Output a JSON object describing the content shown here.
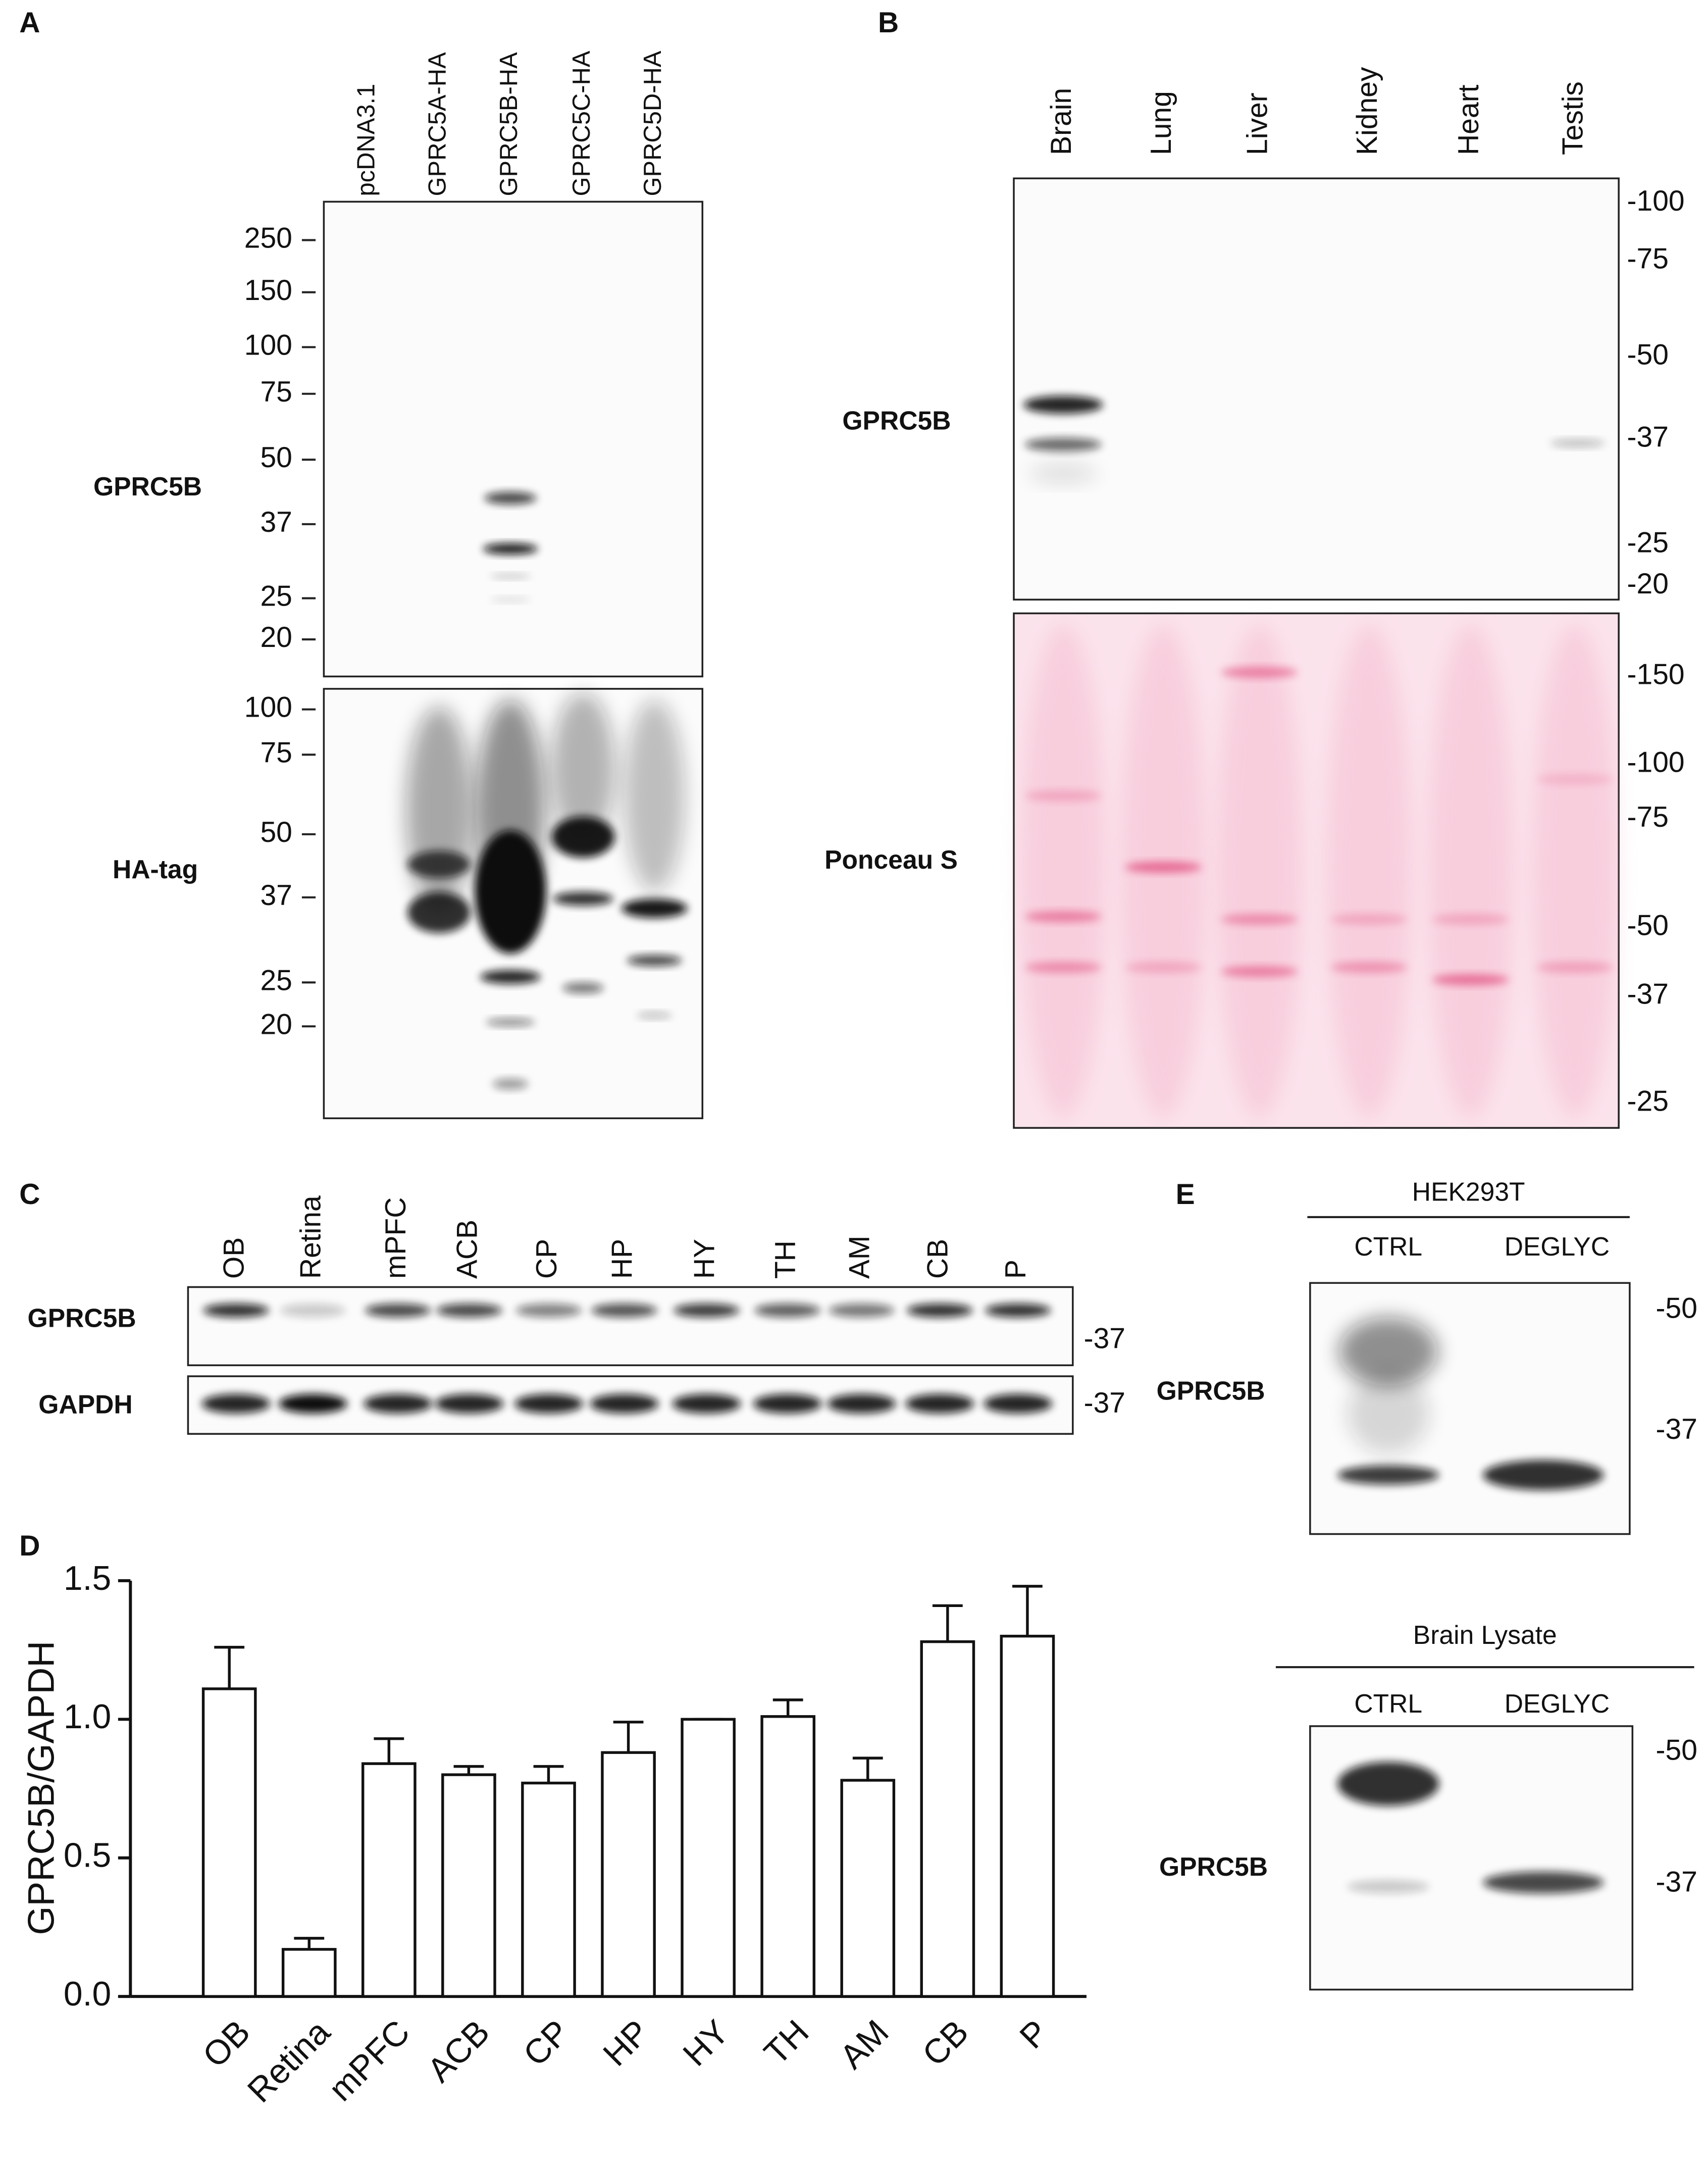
{
  "panels": {
    "A": {
      "label": "A",
      "lanes": [
        "pcDNA3.1",
        "GPRC5A-HA",
        "GPRC5B-HA",
        "GPRC5C-HA",
        "GPRC5D-HA"
      ],
      "blots": [
        {
          "label": "GPRC5B",
          "markers": [
            250,
            150,
            100,
            75,
            50,
            37,
            25,
            20
          ]
        },
        {
          "label": "HA-tag",
          "markers": [
            100,
            75,
            50,
            37,
            25,
            20
          ]
        }
      ]
    },
    "B": {
      "label": "B",
      "lanes": [
        "Brain",
        "Lung",
        "Liver",
        "Kidney",
        "Heart",
        "Testis"
      ],
      "blots": [
        {
          "label": "GPRC5B",
          "markers": [
            "-100",
            "-75",
            "-50",
            "-37",
            "-25",
            "-20"
          ]
        },
        {
          "label": "Ponceau S",
          "markers": [
            "-150",
            "-100",
            "-75",
            "-50",
            "-37",
            "-25"
          ]
        }
      ]
    },
    "C": {
      "label": "C",
      "lanes": [
        "OB",
        "Retina",
        "mPFC",
        "ACB",
        "CP",
        "HP",
        "HY",
        "TH",
        "AM",
        "CB",
        "P"
      ],
      "blots": [
        {
          "label": "GPRC5B",
          "marker": "-37"
        },
        {
          "label": "GAPDH",
          "marker": "-37"
        }
      ]
    },
    "E": {
      "label": "E",
      "blots": [
        {
          "group": "HEK293T",
          "lanes": [
            "CTRL",
            "DEGLYC"
          ],
          "label": "GPRC5B",
          "markers": [
            "-50",
            "-37"
          ]
        },
        {
          "group": "Brain Lysate",
          "lanes": [
            "CTRL",
            "DEGLYC"
          ],
          "label": "GPRC5B",
          "markers": [
            "-50",
            "-37"
          ]
        }
      ]
    }
  },
  "chart_data": {
    "type": "bar",
    "panel_label": "D",
    "y_label": "GPRC5B/GAPDH",
    "categories": [
      "OB",
      "Retina",
      "mPFC",
      "ACB",
      "CP",
      "HP",
      "HY",
      "TH",
      "AM",
      "CB",
      "P"
    ],
    "values": [
      1.11,
      0.17,
      0.84,
      0.8,
      0.77,
      0.88,
      1.0,
      1.01,
      0.78,
      1.28,
      1.3
    ],
    "errors": [
      0.15,
      0.04,
      0.09,
      0.03,
      0.06,
      0.11,
      0,
      0.06,
      0.08,
      0.13,
      0.18
    ],
    "color": "#ffffff",
    "ylim": [
      0,
      1.5
    ],
    "yticks": [
      {
        "value": 0,
        "label": "0.0"
      },
      0.5,
      {
        "value": 1,
        "label": "1.0"
      },
      1.5
    ]
  }
}
